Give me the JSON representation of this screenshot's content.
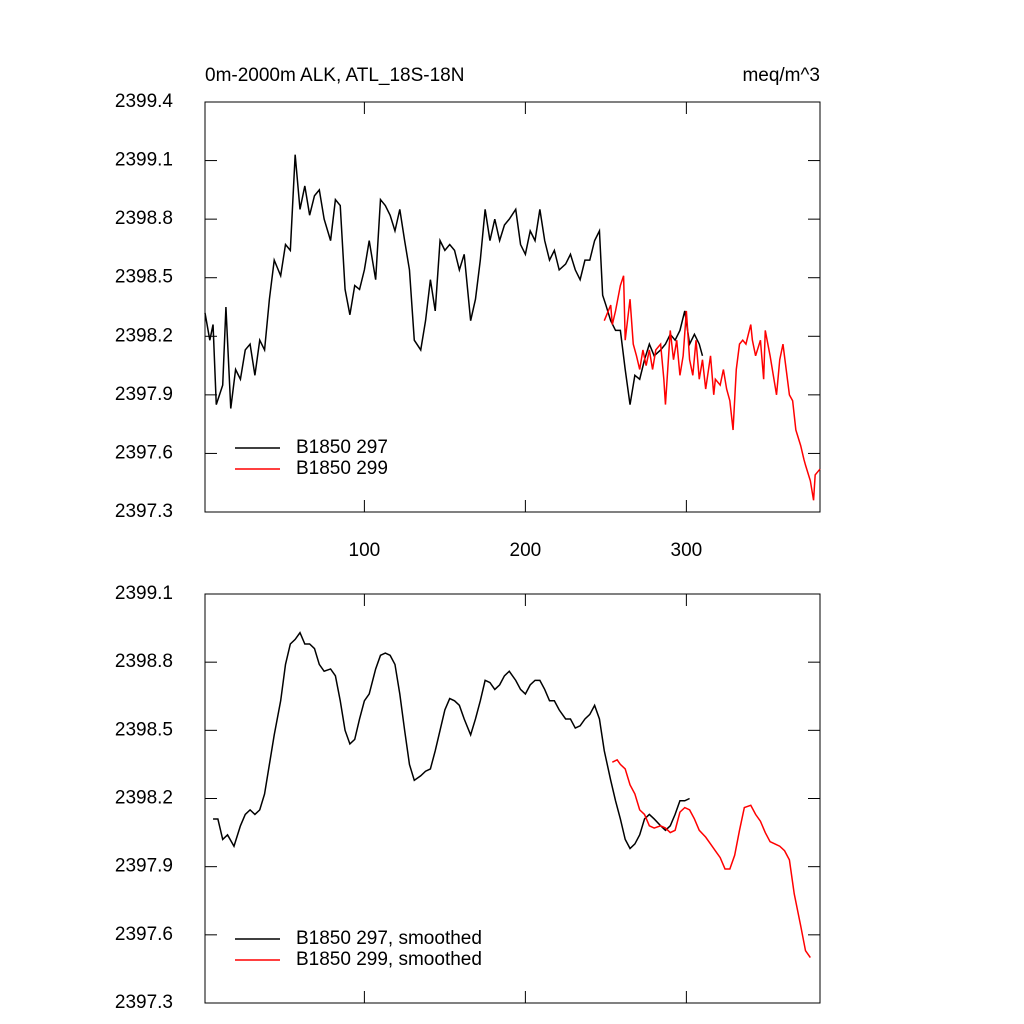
{
  "chart_data": [
    {
      "type": "line",
      "title": "0m-2000m ALK, ATL_18S-18N",
      "units": "meq/m^3",
      "xlim": [
        1,
        383
      ],
      "xticks": [
        100,
        200,
        300
      ],
      "xticklabels": true,
      "ylim": [
        2397.3,
        2399.4
      ],
      "yticks": [
        2397.3,
        2397.6,
        2397.9,
        2398.2,
        2398.5,
        2398.8,
        2399.1,
        2399.4
      ],
      "legend": "lower left",
      "series": [
        {
          "name": "B1850 297",
          "color": "#000000",
          "x": [
            1,
            4,
            6,
            8,
            12,
            14,
            17,
            20,
            23,
            26,
            29,
            32,
            35,
            38,
            41,
            44,
            48,
            51,
            54,
            57,
            60,
            63,
            66,
            69,
            72,
            75,
            79,
            82,
            85,
            88,
            91,
            94,
            97,
            100,
            103,
            107,
            110,
            113,
            116,
            119,
            122,
            125,
            128,
            131,
            135,
            138,
            141,
            144,
            147,
            150,
            153,
            156,
            159,
            162,
            166,
            169,
            172,
            175,
            178,
            181,
            184,
            187,
            190,
            194,
            197,
            200,
            203,
            206,
            209,
            212,
            215,
            218,
            221,
            225,
            228,
            231,
            234,
            237,
            240,
            243,
            246,
            248,
            250,
            253,
            256,
            259,
            262,
            265,
            268,
            271,
            274,
            277,
            280,
            284,
            287,
            290,
            293,
            296,
            299,
            302,
            305,
            308,
            310
          ],
          "values": [
            2398.32,
            2398.18,
            2398.26,
            2397.85,
            2397.95,
            2398.35,
            2397.83,
            2398.03,
            2397.98,
            2398.13,
            2398.16,
            2398.0,
            2398.18,
            2398.13,
            2398.39,
            2398.59,
            2398.51,
            2398.67,
            2398.64,
            2399.13,
            2398.85,
            2398.97,
            2398.82,
            2398.92,
            2398.95,
            2398.8,
            2398.69,
            2398.9,
            2398.87,
            2398.44,
            2398.31,
            2398.46,
            2398.44,
            2398.54,
            2398.69,
            2398.49,
            2398.9,
            2398.87,
            2398.82,
            2398.74,
            2398.85,
            2398.69,
            2398.54,
            2398.18,
            2398.13,
            2398.28,
            2398.49,
            2398.33,
            2398.69,
            2398.64,
            2398.67,
            2398.64,
            2398.54,
            2398.62,
            2398.28,
            2398.39,
            2398.59,
            2398.85,
            2398.69,
            2398.8,
            2398.69,
            2398.77,
            2398.8,
            2398.85,
            2398.67,
            2398.62,
            2398.74,
            2398.69,
            2398.85,
            2398.69,
            2398.59,
            2398.64,
            2398.54,
            2398.57,
            2398.62,
            2398.54,
            2398.49,
            2398.59,
            2398.59,
            2398.69,
            2398.74,
            2398.41,
            2398.36,
            2398.28,
            2398.23,
            2398.23,
            2398.03,
            2397.85,
            2398.0,
            2397.98,
            2398.08,
            2398.16,
            2398.1,
            2398.13,
            2398.16,
            2398.21,
            2398.18,
            2398.23,
            2398.33,
            2398.16,
            2398.21,
            2398.16,
            2398.1
          ]
        },
        {
          "name": "B1850 299",
          "color": "#ff0000",
          "x": [
            249,
            253,
            254,
            256,
            259,
            261,
            262,
            265,
            267,
            269,
            271,
            273,
            275,
            277,
            279,
            281,
            284,
            286,
            287,
            290,
            292,
            294,
            296,
            298,
            300,
            302,
            304,
            306,
            308,
            310,
            312,
            315,
            317,
            318,
            321,
            323,
            325,
            327,
            329,
            331,
            333,
            335,
            337,
            340,
            341,
            343,
            346,
            348,
            349,
            352,
            354,
            356,
            358,
            360,
            362,
            364,
            366,
            368,
            371,
            373,
            374,
            377,
            379,
            380,
            383
          ],
          "values": [
            2398.28,
            2398.36,
            2398.26,
            2398.33,
            2398.46,
            2398.51,
            2398.18,
            2398.39,
            2398.16,
            2398.1,
            2398.03,
            2398.13,
            2398.05,
            2398.13,
            2398.03,
            2398.13,
            2398.16,
            2397.98,
            2397.85,
            2398.23,
            2398.08,
            2398.18,
            2398.0,
            2398.1,
            2398.33,
            2398.08,
            2398.0,
            2398.18,
            2397.98,
            2398.08,
            2397.93,
            2398.1,
            2397.9,
            2397.98,
            2397.95,
            2398.03,
            2397.93,
            2397.87,
            2397.72,
            2398.03,
            2398.16,
            2398.18,
            2398.16,
            2398.26,
            2398.18,
            2398.1,
            2398.18,
            2397.98,
            2398.23,
            2398.1,
            2398.0,
            2397.9,
            2398.08,
            2398.16,
            2398.03,
            2397.9,
            2397.87,
            2397.72,
            2397.64,
            2397.57,
            2397.54,
            2397.46,
            2397.36,
            2397.49,
            2397.52
          ]
        }
      ]
    },
    {
      "type": "line",
      "xlim": [
        1,
        383
      ],
      "xticks": [
        100,
        200,
        300
      ],
      "xticklabels": false,
      "ylim": [
        2397.3,
        2399.1
      ],
      "yticks": [
        2397.3,
        2397.6,
        2397.9,
        2398.2,
        2398.5,
        2398.8,
        2399.1
      ],
      "legend": "lower left",
      "series": [
        {
          "name": "B1850 297, smoothed",
          "color": "#000000",
          "x": [
            6,
            9,
            12,
            15,
            19,
            23,
            26,
            29,
            32,
            35,
            38,
            41,
            44,
            48,
            51,
            54,
            57,
            60,
            63,
            66,
            69,
            72,
            75,
            79,
            82,
            85,
            88,
            91,
            94,
            97,
            100,
            103,
            107,
            110,
            113,
            116,
            119,
            122,
            125,
            128,
            131,
            135,
            138,
            141,
            144,
            147,
            150,
            153,
            156,
            159,
            162,
            166,
            169,
            172,
            175,
            178,
            181,
            184,
            187,
            190,
            194,
            197,
            200,
            203,
            206,
            209,
            212,
            215,
            218,
            221,
            225,
            228,
            231,
            234,
            237,
            240,
            243,
            246,
            249,
            253,
            256,
            259,
            262,
            265,
            268,
            271,
            274,
            277,
            280,
            284,
            287,
            290,
            293,
            296,
            299,
            302
          ],
          "values": [
            2398.11,
            2398.11,
            2398.02,
            2398.04,
            2397.99,
            2398.08,
            2398.13,
            2398.15,
            2398.13,
            2398.15,
            2398.22,
            2398.35,
            2398.48,
            2398.63,
            2398.79,
            2398.88,
            2398.9,
            2398.93,
            2398.88,
            2398.88,
            2398.86,
            2398.79,
            2398.76,
            2398.77,
            2398.74,
            2398.63,
            2398.5,
            2398.44,
            2398.46,
            2398.55,
            2398.63,
            2398.66,
            2398.77,
            2398.83,
            2398.84,
            2398.83,
            2398.79,
            2398.66,
            2398.5,
            2398.35,
            2398.28,
            2398.3,
            2398.32,
            2398.33,
            2398.41,
            2398.5,
            2398.59,
            2398.64,
            2398.63,
            2398.61,
            2398.55,
            2398.48,
            2398.55,
            2398.63,
            2398.72,
            2398.71,
            2398.68,
            2398.7,
            2398.74,
            2398.76,
            2398.72,
            2398.68,
            2398.66,
            2398.7,
            2398.72,
            2398.72,
            2398.68,
            2398.63,
            2398.63,
            2398.59,
            2398.55,
            2398.55,
            2398.51,
            2398.52,
            2398.55,
            2398.57,
            2398.61,
            2398.55,
            2398.41,
            2398.28,
            2398.19,
            2398.11,
            2398.02,
            2397.98,
            2398.0,
            2398.04,
            2398.11,
            2398.13,
            2398.11,
            2398.08,
            2398.06,
            2398.08,
            2398.13,
            2398.19,
            2398.19,
            2398.2
          ]
        },
        {
          "name": "B1850 299, smoothed",
          "color": "#ff0000",
          "x": [
            254,
            257,
            259,
            262,
            265,
            268,
            271,
            274,
            277,
            280,
            284,
            287,
            290,
            293,
            296,
            299,
            302,
            305,
            308,
            312,
            315,
            318,
            321,
            324,
            327,
            330,
            333,
            336,
            340,
            343,
            346,
            349,
            352,
            355,
            358,
            361,
            364,
            367,
            371,
            374,
            377
          ],
          "values": [
            2398.36,
            2398.37,
            2398.35,
            2398.33,
            2398.26,
            2398.22,
            2398.15,
            2398.13,
            2398.08,
            2398.07,
            2398.08,
            2398.07,
            2398.05,
            2398.06,
            2398.14,
            2398.16,
            2398.15,
            2398.11,
            2398.06,
            2398.03,
            2398.0,
            2397.97,
            2397.94,
            2397.89,
            2397.89,
            2397.95,
            2398.06,
            2398.16,
            2398.17,
            2398.13,
            2398.1,
            2398.05,
            2398.01,
            2398.0,
            2397.99,
            2397.97,
            2397.93,
            2397.78,
            2397.64,
            2397.53,
            2397.5
          ]
        }
      ]
    }
  ]
}
